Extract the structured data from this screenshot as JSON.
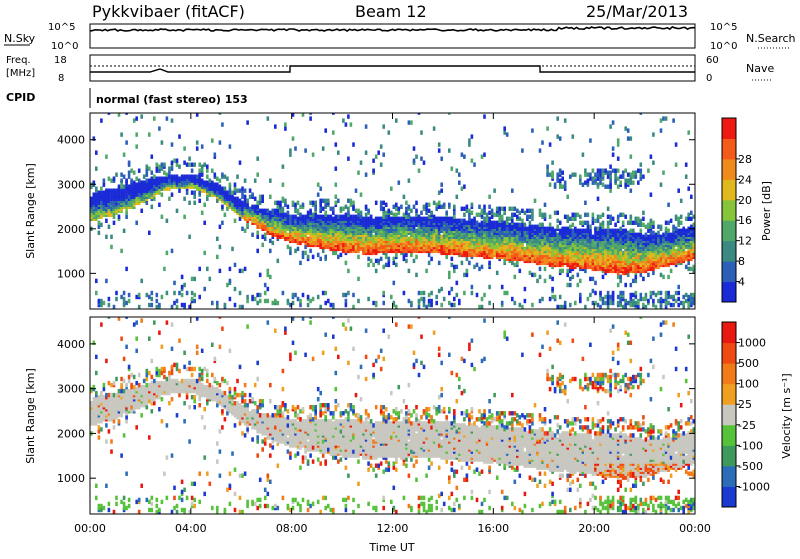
{
  "header": {
    "station": "Pykkvibaer (fitACF)",
    "beam": "Beam 12",
    "date": "25/Mar/2013"
  },
  "top_panels": {
    "nsky_label": "N.Sky",
    "nsky_ticks": [
      "10^5",
      "10^0"
    ],
    "nsearch_label": "N.Search",
    "nsearch_ticks": [
      "10^5",
      "10^0"
    ],
    "freq_label_1": "Freq.",
    "freq_label_2": "[MHz]",
    "freq_ticks": [
      "18",
      "8"
    ],
    "nave_label": "Nave",
    "nave_ticks": [
      "60",
      "0"
    ],
    "cpid_label": "CPID",
    "cpid_text": "normal (fast stereo) 153"
  },
  "chart_data": [
    {
      "type": "heatmap",
      "name": "power",
      "ylabel": "Slant Range [km]",
      "ylim": [
        200,
        4600
      ],
      "xlim": [
        0,
        24
      ],
      "y_ticks": [
        1000,
        2000,
        3000,
        4000
      ],
      "colorbar": {
        "label": "Power [dB]",
        "ticks": [
          "4",
          "8",
          "12",
          "16",
          "20",
          "24",
          "28"
        ],
        "colors": [
          "#1a2ad6",
          "#2c5fb8",
          "#3b8a82",
          "#4fa86a",
          "#86c53a",
          "#e0b81e",
          "#f08a1c",
          "#f45a1a",
          "#ee1a12"
        ]
      },
      "echo_band": {
        "hours": [
          0,
          1,
          2,
          3,
          4,
          5,
          6,
          7,
          8,
          9,
          10,
          11,
          12,
          13,
          14,
          15,
          16,
          17,
          18,
          19,
          20,
          21,
          22,
          23,
          24
        ],
        "upper_km": [
          2750,
          2850,
          3000,
          3150,
          3150,
          2950,
          2550,
          2350,
          2250,
          2250,
          2250,
          2200,
          2200,
          2200,
          2200,
          2150,
          2100,
          2050,
          2000,
          1950,
          1950,
          1950,
          1800,
          1850,
          2000
        ],
        "lower_km": [
          2150,
          2300,
          2550,
          2850,
          2900,
          2650,
          2200,
          1850,
          1650,
          1550,
          1450,
          1400,
          1450,
          1450,
          1400,
          1350,
          1300,
          1250,
          1150,
          1100,
          1050,
          950,
          1000,
          1150,
          1300
        ]
      }
    },
    {
      "type": "heatmap",
      "name": "velocity",
      "ylabel": "Slant Range [km]",
      "ylim": [
        200,
        4600
      ],
      "xlim": [
        0,
        24
      ],
      "y_ticks": [
        1000,
        2000,
        3000,
        4000
      ],
      "colorbar": {
        "label": "Velocity [m s⁻¹]",
        "ticks": [
          "1000",
          "500",
          "100",
          "25",
          "-25",
          "-100",
          "-500",
          "-1000"
        ],
        "colors": [
          "#1a3ad0",
          "#2b6db8",
          "#3e9a5c",
          "#56c23a",
          "#c8c8c0",
          "#f0a020",
          "#f27a18",
          "#ef4a12",
          "#e81810"
        ]
      },
      "x_ticks": [
        "00:00",
        "04:00",
        "08:00",
        "12:00",
        "16:00",
        "20:00",
        "00:00"
      ],
      "xlabel": "Time UT"
    }
  ]
}
